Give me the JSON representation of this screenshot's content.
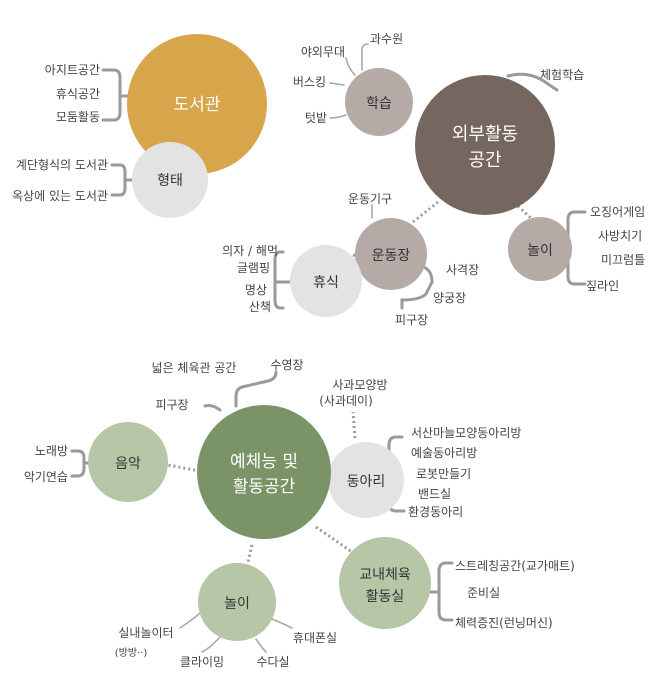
{
  "top": {
    "library": {
      "title": "도서관",
      "color": "#d7a54a",
      "items": [
        "아지트공간",
        "휴식공간",
        "모둠활동"
      ],
      "form": {
        "title": "형태",
        "items": [
          "계단형식의 도서관",
          "옥상에 있는 도서관"
        ]
      }
    },
    "outdoor": {
      "title_line1": "외부활동",
      "title_line2": "공간",
      "color": "#756660",
      "extra": "체험학습",
      "learning": {
        "title": "학습",
        "items": [
          "과수원",
          "야외무대",
          "버스킹",
          "텃밭"
        ]
      },
      "play": {
        "title": "놀이",
        "items": [
          "오징어게임",
          "사방치기",
          "미끄럼틀",
          "짚라인"
        ]
      },
      "playground": {
        "title": "운동장",
        "top_item": "운동기구",
        "items": [
          "사격장",
          "양궁장",
          "피구장"
        ]
      },
      "rest": {
        "title": "휴식",
        "items": [
          "의자 / 해먹",
          "글램핑",
          "명상",
          "산책"
        ]
      }
    }
  },
  "bottom": {
    "arts": {
      "title_line1": "예체능 및",
      "title_line2": "활동공간",
      "color": "#7a9467",
      "top_items": [
        "넓은 체육관 공간",
        "수영장",
        "피구장"
      ]
    },
    "music": {
      "title": "음악",
      "items": [
        "노래방",
        "악기연습"
      ]
    },
    "club": {
      "title": "동아리",
      "top_item_line1": "사과모양방",
      "top_item_line2": "(사과데이)",
      "items": [
        "서산마늘모양동아리방",
        "예술동아리방",
        "로봇만들기",
        "밴드실",
        "환경동아리"
      ]
    },
    "gym": {
      "title_line1": "교내체육",
      "title_line2": "활동실",
      "items": [
        "스트레칭공간(교가매트)",
        "준비실",
        "체력증진(런닝머신)"
      ]
    },
    "play": {
      "title": "놀이",
      "indoor": "실내놀이터",
      "indoor_sub": "(방방··)",
      "items": [
        "클라이밍",
        "수다실",
        "휴대폰실"
      ]
    }
  }
}
